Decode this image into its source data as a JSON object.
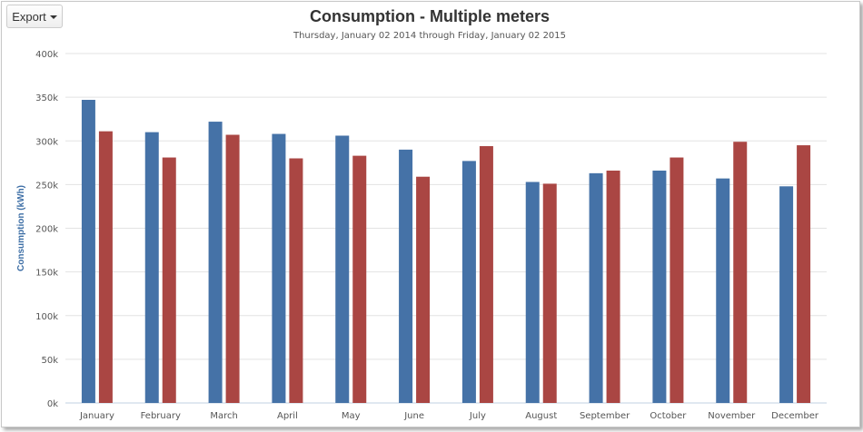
{
  "toolbar": {
    "export_label": "Export"
  },
  "colors": {
    "series_1": "#4572a7",
    "series_2": "#aa4643",
    "grid": "#e3e3e3"
  },
  "chart_data": {
    "type": "bar",
    "title": "Consumption - Multiple meters",
    "subtitle": "Thursday, January 02 2014 through Friday, January 02 2015",
    "xlabel": "",
    "ylabel": "Consumption (kWh)",
    "ylim": [
      0,
      400000
    ],
    "yticks": [
      0,
      50000,
      100000,
      150000,
      200000,
      250000,
      300000,
      350000,
      400000
    ],
    "yticklabels": [
      "0k",
      "50k",
      "100k",
      "150k",
      "200k",
      "250k",
      "300k",
      "350k",
      "400k"
    ],
    "categories": [
      "January",
      "February",
      "March",
      "April",
      "May",
      "June",
      "July",
      "August",
      "September",
      "October",
      "November",
      "December"
    ],
    "series": [
      {
        "values": [
          347000,
          310000,
          322000,
          308000,
          306000,
          290000,
          277000,
          253000,
          263000,
          266000,
          257000,
          248000
        ]
      },
      {
        "values": [
          311000,
          281000,
          307000,
          280000,
          283000,
          259000,
          294000,
          251000,
          266000,
          281000,
          299000,
          295000
        ]
      }
    ],
    "grid": true,
    "legend": "none"
  }
}
